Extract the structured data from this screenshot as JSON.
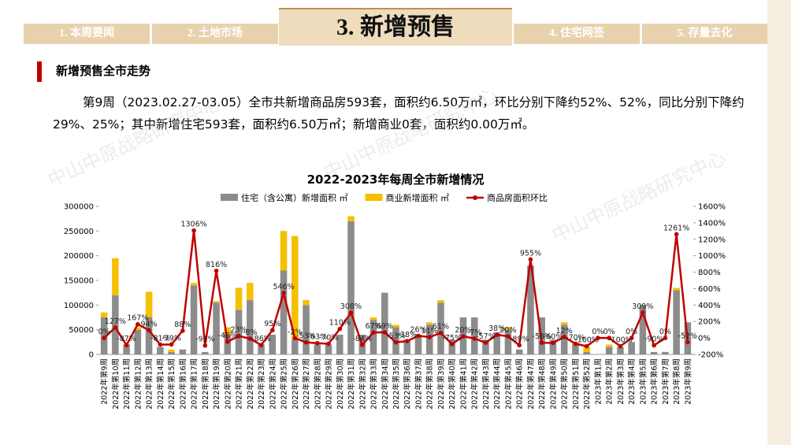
{
  "header": {
    "tabs": [
      "1. 本周要闻",
      "2. 土地市场",
      "3. 新增预售",
      "4. 住宅网签",
      "5. 存量去化"
    ]
  },
  "section_title": "新增预售全市走势",
  "paragraph": "第9周（2023.02.27-03.05）全市共新增商品房593套，面积约6.50万㎡，环比分别下降约52%、52%，同比分别下降约29%、25%；其中新增住宅593套，面积约6.50万㎡；新增商业0套，面积约0.00万㎡。",
  "watermark": "中山中原战略研究中心",
  "chart_data": {
    "type": "bar_line",
    "title": "2022-2023年每周全市新增情况",
    "categories": [
      "2022年第9周",
      "2022年第10周",
      "2022年第11周",
      "2022年第12周",
      "2022年第13周",
      "2022年第14周",
      "2022年第15周",
      "2022年第16周",
      "2022年第17周",
      "2022年第18周",
      "2022年第19周",
      "2022年第20周",
      "2022年第21周",
      "2022年第22周",
      "2022年第23周",
      "2022年第24周",
      "2022年第25周",
      "2022年第26周",
      "2022年第27周",
      "2022年第28周",
      "2022年第29周",
      "2022年第30周",
      "2022年第31周",
      "2022年第32周",
      "2022年第33周",
      "2022年第34周",
      "2022年第35周",
      "2022年第36周",
      "2022年第37周",
      "2022年第38周",
      "2022年第39周",
      "2022年第40周",
      "2022年第41周",
      "2022年第42周",
      "2022年第43周",
      "2022年第44周",
      "2022年第45周",
      "2022年第46周",
      "2022年第47周",
      "2022年第48周",
      "2022年第49周",
      "2022年第50周",
      "2022年第51周",
      "2022年第52周",
      "2023年第1周",
      "2023年第2周",
      "2023年第3周",
      "2023年第4周",
      "2023年第5周",
      "2023年第6周",
      "2023年第7周",
      "2023年第8周",
      "2023年第9周"
    ],
    "series": [
      {
        "name": "住宅（含公寓）新增面积 ㎡",
        "color": "#8c8c8c",
        "stack": true,
        "values": [
          75000,
          120000,
          20000,
          50000,
          75000,
          15000,
          5000,
          10000,
          140000,
          5000,
          105000,
          40000,
          90000,
          110000,
          20000,
          40000,
          170000,
          30000,
          100000,
          20000,
          20000,
          40000,
          270000,
          40000,
          70000,
          125000,
          55000,
          30000,
          40000,
          60000,
          105000,
          30000,
          75000,
          75000,
          30000,
          45000,
          50000,
          10000,
          180000,
          75000,
          30000,
          60000,
          20000,
          5000,
          0,
          15000,
          15000,
          25000,
          100000,
          5000,
          5000,
          130000,
          65000
        ]
      },
      {
        "name": "商业新增面积 ㎡",
        "color": "#f5c000",
        "stack": true,
        "values": [
          10000,
          75000,
          0,
          5000,
          52000,
          0,
          5000,
          0,
          5000,
          0,
          3000,
          15000,
          45000,
          35000,
          0,
          0,
          80000,
          210000,
          10000,
          0,
          0,
          0,
          10000,
          0,
          5000,
          0,
          5000,
          0,
          0,
          5000,
          5000,
          0,
          0,
          0,
          0,
          0,
          5000,
          0,
          0,
          0,
          0,
          5000,
          5000,
          10000,
          0,
          5000,
          0,
          0,
          0,
          0,
          0,
          5000,
          0
        ]
      },
      {
        "name": "商品房面积环比",
        "color": "#c00000",
        "axis": "y2",
        "type": "line",
        "values": [
          0,
          127,
          -87,
          167,
          94,
          -81,
          -79,
          88,
          1306,
          -92,
          816,
          -46,
          23,
          -8,
          -86,
          95,
          546,
          -2,
          -53,
          -63,
          -70,
          110,
          308,
          -84,
          67,
          69,
          -53,
          -38,
          26,
          11,
          61,
          -75,
          20,
          -7,
          -57,
          38,
          20,
          -89,
          955,
          -58,
          -60,
          12,
          -70,
          -100,
          0,
          0,
          -100,
          0,
          309,
          -90,
          0,
          1261,
          -52
        ],
        "value_labels": [
          "0%",
          "127%",
          "-87%",
          "167%",
          "94%",
          "-81%",
          "-79%",
          "88%",
          "1306%",
          "-92%",
          "816%",
          "-46%",
          "23%",
          "-8%",
          "-86%",
          "95%",
          "546%",
          "-2%",
          "-53%",
          "-63%",
          "-70%",
          "110%",
          "308%",
          "-84%",
          "67%",
          "69%",
          "-53%",
          "-38%",
          "26%",
          "11%",
          "61%",
          "-75%",
          "20%",
          "-7%",
          "-57%",
          "38%",
          "20%",
          "-89%",
          "955%",
          "-58%",
          "-60%",
          "12%",
          "-70%",
          "-100%",
          "0%",
          "0%",
          "-100%",
          "0%",
          "309%",
          "-90%",
          "0%",
          "1261%",
          "-52%"
        ]
      }
    ],
    "ylim": [
      0,
      300000
    ],
    "yticks": [
      0,
      50000,
      100000,
      150000,
      200000,
      250000,
      300000
    ],
    "y2lim": [
      -200,
      1600
    ],
    "y2ticks": [
      {
        "value": -200,
        "label": "-200%"
      },
      {
        "value": 0,
        "label": "0%"
      },
      {
        "value": 200,
        "label": "200%"
      },
      {
        "value": 400,
        "label": "400%"
      },
      {
        "value": 600,
        "label": "600%"
      },
      {
        "value": 800,
        "label": "800%"
      },
      {
        "value": 1000,
        "label": "1000%"
      },
      {
        "value": 1200,
        "label": "1200%"
      },
      {
        "value": 1400,
        "label": "1400%"
      },
      {
        "value": 1600,
        "label": "1600%"
      }
    ],
    "legend": "top"
  }
}
